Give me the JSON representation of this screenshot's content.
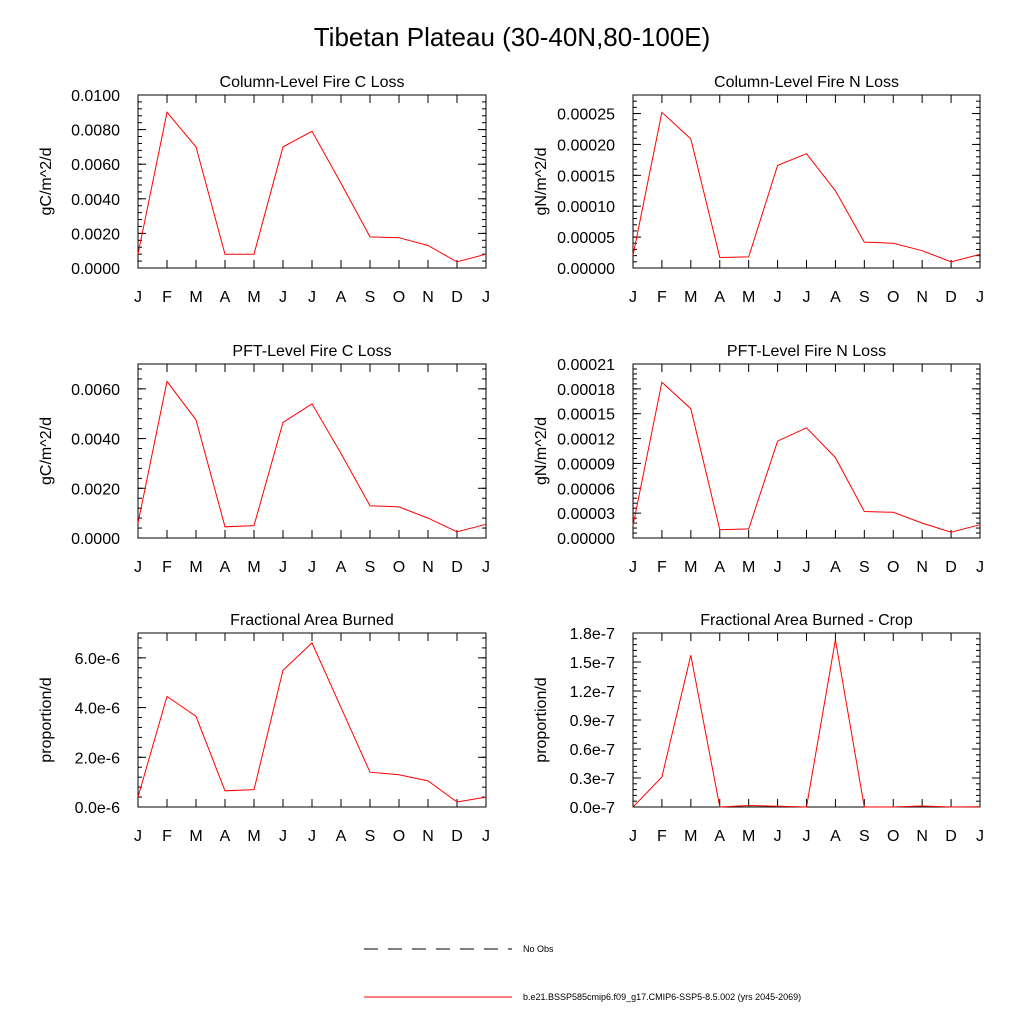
{
  "title": "Tibetan Plateau (30-40N,80-100E)",
  "months": [
    "J",
    "F",
    "M",
    "A",
    "M",
    "J",
    "J",
    "A",
    "S",
    "O",
    "N",
    "D",
    "J"
  ],
  "legend": {
    "obs_label": "No Obs",
    "model_label": "b.e21.BSSP585cmip6.f09_g17.CMIP6-SSP5-8.5.002 (yrs 2045-2069)",
    "model_color": "#ff0000"
  },
  "chart_data": [
    {
      "type": "line",
      "title": "Column-Level Fire C Loss",
      "ylabel": "gC/m^2/d",
      "ylim": [
        0,
        0.01
      ],
      "yticks": [
        0,
        0.002,
        0.004,
        0.006,
        0.008,
        0.01
      ],
      "yticklabels": [
        "0.0000",
        "0.0020",
        "0.0040",
        "0.0060",
        "0.0080",
        "0.0100"
      ],
      "series": [
        {
          "values": [
            0.0008,
            0.009,
            0.007,
            0.0008,
            0.0008,
            0.007,
            0.0079,
            0.0049,
            0.0018,
            0.00175,
            0.0013,
            0.00035,
            0.0008
          ]
        }
      ]
    },
    {
      "type": "line",
      "title": "Column-Level Fire N Loss",
      "ylabel": "gN/m^2/d",
      "ylim": [
        0,
        0.00028
      ],
      "yticks": [
        0,
        5e-05,
        0.0001,
        0.00015,
        0.0002,
        0.00025
      ],
      "yticklabels": [
        "0.00000",
        "0.00005",
        "0.00010",
        "0.00015",
        "0.00020",
        "0.00025"
      ],
      "series": [
        {
          "values": [
            2e-05,
            0.000252,
            0.000209,
            1.7e-05,
            1.8e-05,
            0.000166,
            0.000185,
            0.000125,
            4.2e-05,
            4e-05,
            2.8e-05,
            1e-05,
            2.2e-05
          ]
        }
      ]
    },
    {
      "type": "line",
      "title": "PFT-Level Fire C Loss",
      "ylabel": "gC/m^2/d",
      "ylim": [
        0,
        0.007
      ],
      "yticks": [
        0,
        0.002,
        0.004,
        0.006
      ],
      "yticklabels": [
        "0.0000",
        "0.0020",
        "0.0040",
        "0.0060"
      ],
      "series": [
        {
          "values": [
            0.0006,
            0.0063,
            0.00475,
            0.00045,
            0.0005,
            0.00465,
            0.0054,
            0.0034,
            0.0013,
            0.00125,
            0.0008,
            0.00025,
            0.00055
          ]
        }
      ]
    },
    {
      "type": "line",
      "title": "PFT-Level Fire N Loss",
      "ylabel": "gN/m^2/d",
      "ylim": [
        0,
        0.00021
      ],
      "yticks": [
        0,
        3e-05,
        6e-05,
        9e-05,
        0.00012,
        0.00015,
        0.00018,
        0.00021
      ],
      "yticklabels": [
        "0.00000",
        "0.00003",
        "0.00006",
        "0.00009",
        "0.00012",
        "0.00015",
        "0.00018",
        "0.00021"
      ],
      "series": [
        {
          "values": [
            1.5e-05,
            0.000188,
            0.000156,
            1e-05,
            1.1e-05,
            0.000117,
            0.000133,
            9.7e-05,
            3.2e-05,
            3.1e-05,
            1.8e-05,
            7e-06,
            1.6e-05
          ]
        }
      ]
    },
    {
      "type": "line",
      "title": "Fractional Area Burned",
      "ylabel": "proportion/d",
      "ylim": [
        0,
        7e-06
      ],
      "yticks": [
        0,
        2e-06,
        4e-06,
        6e-06
      ],
      "yticklabels": [
        "0.0e-6",
        "2.0e-6",
        "4.0e-6",
        "6.0e-6"
      ],
      "series": [
        {
          "values": [
            4e-07,
            4.45e-06,
            3.65e-06,
            6.5e-07,
            7e-07,
            5.5e-06,
            6.6e-06,
            4e-06,
            1.4e-06,
            1.3e-06,
            1.05e-06,
            2e-07,
            4e-07
          ]
        }
      ]
    },
    {
      "type": "line",
      "title": "Fractional Area Burned - Crop",
      "ylabel": "proportion/d",
      "ylim": [
        0,
        1.8e-07
      ],
      "yticks": [
        0,
        3e-08,
        6e-08,
        9e-08,
        1.2e-07,
        1.5e-07,
        1.8e-07
      ],
      "yticklabels": [
        "0.0e-7",
        "0.3e-7",
        "0.6e-7",
        "0.9e-7",
        "1.2e-7",
        "1.5e-7",
        "1.8e-7"
      ],
      "series": [
        {
          "values": [
            0,
            3.1e-08,
            1.57e-07,
            0,
            1.5e-09,
            8e-10,
            0,
            1.73e-07,
            0,
            0,
            1e-09,
            0,
            3e-10
          ]
        }
      ]
    }
  ]
}
